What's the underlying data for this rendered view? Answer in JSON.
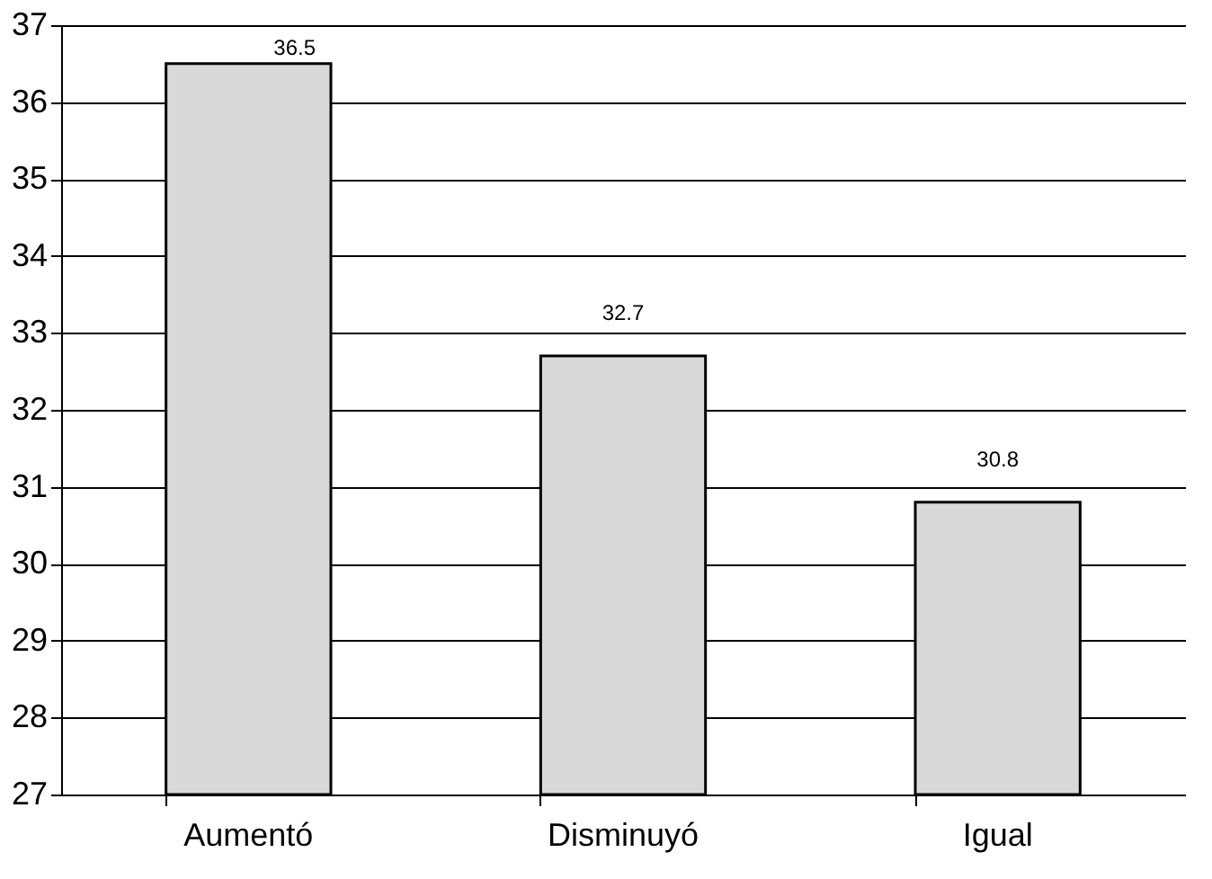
{
  "chart_data": {
    "type": "bar",
    "categories": [
      "Aumentó",
      "Disminuyó",
      "Igual"
    ],
    "values": [
      36.5,
      32.7,
      30.8
    ],
    "color": "#d9d9d9",
    "ylim": [
      27,
      37
    ],
    "yticks": [
      27,
      28,
      29,
      30,
      31,
      32,
      33,
      34,
      35,
      36,
      37
    ],
    "grid": "y",
    "data_labels": true
  }
}
